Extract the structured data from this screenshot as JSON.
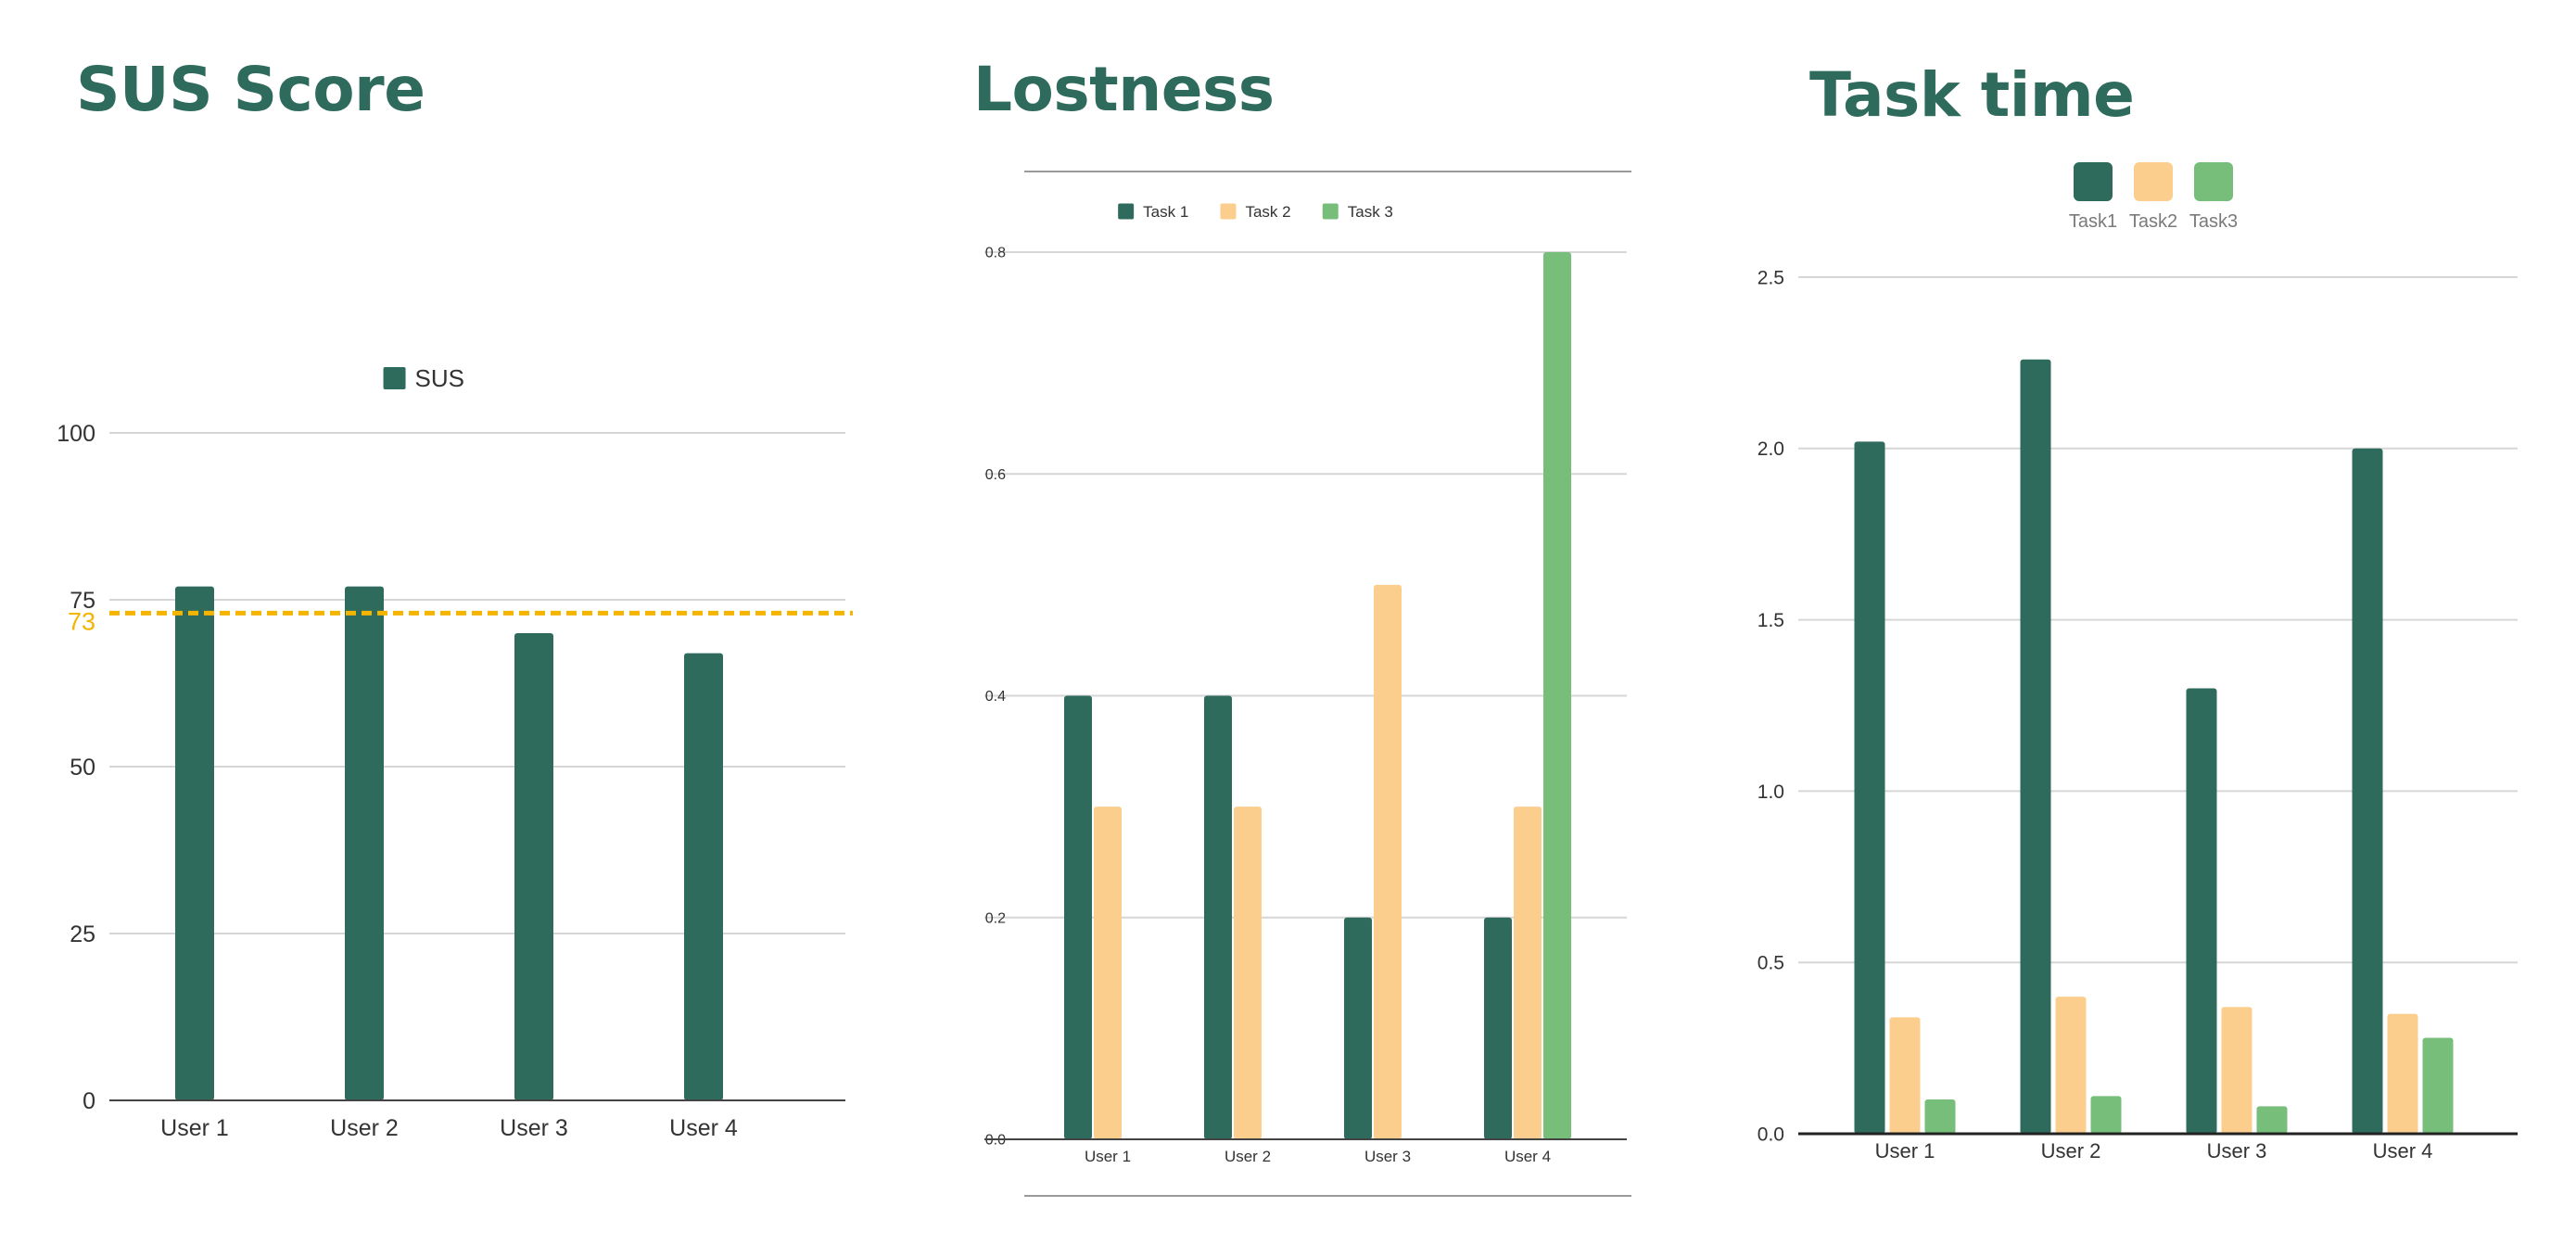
{
  "colors": {
    "title": "#2f6b5c",
    "task1": "#2e6b5c",
    "task2": "#fcce8d",
    "task3": "#77be7b",
    "threshold": "#f5b400",
    "grid": "#d6d6d6",
    "axis": "#444444",
    "text": "#333333"
  },
  "chart_data": [
    {
      "type": "bar",
      "title": "SUS Score",
      "categories": [
        "User 1",
        "User 2",
        "User 3",
        "User 4"
      ],
      "series": [
        {
          "name": "SUS",
          "values": [
            77,
            77,
            70,
            67
          ]
        }
      ],
      "ylim": [
        0,
        100
      ],
      "yticks": [
        "0",
        "25",
        "50",
        "75",
        "100"
      ],
      "threshold": {
        "value": 73,
        "label": "73"
      },
      "legend": "top-center",
      "grid": true
    },
    {
      "type": "bar",
      "title": "Lostness",
      "categories": [
        "User 1",
        "User 2",
        "User 3",
        "User 4"
      ],
      "series": [
        {
          "name": "Task 1",
          "values": [
            0.4,
            0.4,
            0.2,
            0.2
          ]
        },
        {
          "name": "Task 2",
          "values": [
            0.3,
            0.3,
            0.5,
            0.3
          ]
        },
        {
          "name": "Task 3",
          "values": [
            0,
            0,
            0,
            0.8
          ]
        }
      ],
      "ylim": [
        0,
        0.8
      ],
      "yticks": [
        "0.0",
        "0.2",
        "0.4",
        "0.6",
        "0.8"
      ],
      "legend": "top-center",
      "grid": true
    },
    {
      "type": "bar",
      "title": "Task time",
      "categories": [
        "User 1",
        "User 2",
        "User 3",
        "User 4"
      ],
      "series": [
        {
          "name": "Task1",
          "values": [
            2.02,
            2.26,
            1.3,
            2.0
          ]
        },
        {
          "name": "Task2",
          "values": [
            0.34,
            0.4,
            0.37,
            0.35
          ]
        },
        {
          "name": "Task3",
          "values": [
            0.1,
            0.11,
            0.08,
            0.28
          ]
        }
      ],
      "ylim": [
        0,
        2.5
      ],
      "yticks": [
        "0.0",
        "0.5",
        "1.0",
        "1.5",
        "2.0",
        "2.5"
      ],
      "legend": "top-center",
      "grid": true
    }
  ]
}
